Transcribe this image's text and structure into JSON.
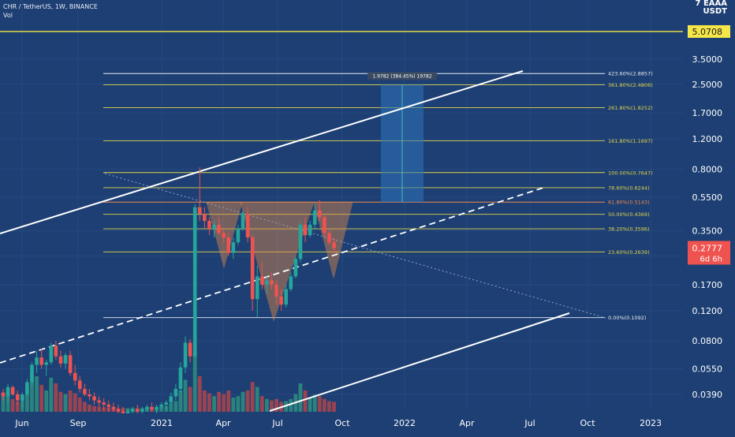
{
  "header": {
    "symbol": "CHR / TetherUS, 1W, BINANCE",
    "volume_label": "Vol",
    "quote_line1": "7 EAAA",
    "quote_line2": "USDT"
  },
  "colors": {
    "background": "#1d3f73",
    "candle_up": "#26a69a",
    "candle_down": "#ef5350",
    "volume_up": "#2e8b7f",
    "volume_down": "#a8454f",
    "fib_line": "#e3d54a",
    "fib_61": "#f08a4b",
    "channel": "#ffffff",
    "resistance": "#f5e64a",
    "pattern_fill": "#e0894a",
    "target_box": "#2b74b8"
  },
  "chart_data": {
    "type": "candlestick",
    "scale": "log",
    "x_ticks": [
      "Jun",
      "Sep",
      "2021",
      "Apr",
      "Jul",
      "Oct",
      "2022",
      "Apr",
      "Jul",
      "Oct",
      "2023"
    ],
    "y_ticks": [
      "3.5000",
      "2.5000",
      "1.7000",
      "1.2000",
      "0.8000",
      "0.5500",
      "0.3500",
      "0.2500",
      "0.1700",
      "0.1200",
      "0.0800",
      "0.0550",
      "0.0390"
    ],
    "y_tick_values": [
      3.5,
      2.5,
      1.7,
      1.2,
      0.8,
      0.55,
      0.35,
      0.25,
      0.17,
      0.12,
      0.08,
      0.055,
      0.039
    ],
    "resistance_label": "5.0708",
    "resistance_value": 5.0708,
    "last_price_label": "0.2777",
    "last_price_value": 0.2777,
    "countdown_label": "6d 6h",
    "fib_levels": [
      {
        "label": "423.60%(2.8857)",
        "value": 2.8857
      },
      {
        "label": "361.80%(2.4806)",
        "value": 2.4806
      },
      {
        "label": "261.80%(1.8252)",
        "value": 1.8252
      },
      {
        "label": "161.80%(1.1697)",
        "value": 1.1697
      },
      {
        "label": "100.00%(0.7647)",
        "value": 0.7647
      },
      {
        "label": "78.60%(0.6244)",
        "value": 0.6244
      },
      {
        "label": "61.80%(0.5143)",
        "value": 0.5143
      },
      {
        "label": "50.00%(0.4369)",
        "value": 0.4369
      },
      {
        "label": "38.20%(0.3596)",
        "value": 0.3596
      },
      {
        "label": "23.60%(0.2639)",
        "value": 0.2639
      },
      {
        "label": "0.00%(0.1092)",
        "value": 0.1092
      }
    ],
    "measure_label": "1.9782 (384.45%) 19782",
    "target_box": {
      "low": 0.5143,
      "high": 2.4806
    },
    "candles": [
      [
        0.04,
        0.042,
        0.036,
        0.038
      ],
      [
        0.038,
        0.045,
        0.035,
        0.043
      ],
      [
        0.043,
        0.044,
        0.038,
        0.039
      ],
      [
        0.039,
        0.041,
        0.034,
        0.036
      ],
      [
        0.036,
        0.04,
        0.033,
        0.039
      ],
      [
        0.039,
        0.048,
        0.038,
        0.046
      ],
      [
        0.046,
        0.06,
        0.044,
        0.058
      ],
      [
        0.058,
        0.07,
        0.052,
        0.064
      ],
      [
        0.064,
        0.072,
        0.055,
        0.058
      ],
      [
        0.058,
        0.062,
        0.05,
        0.06
      ],
      [
        0.06,
        0.078,
        0.058,
        0.075
      ],
      [
        0.075,
        0.08,
        0.062,
        0.065
      ],
      [
        0.065,
        0.07,
        0.056,
        0.059
      ],
      [
        0.059,
        0.068,
        0.055,
        0.066
      ],
      [
        0.066,
        0.07,
        0.05,
        0.052
      ],
      [
        0.052,
        0.058,
        0.044,
        0.047
      ],
      [
        0.047,
        0.05,
        0.04,
        0.042
      ],
      [
        0.042,
        0.045,
        0.038,
        0.039
      ],
      [
        0.039,
        0.042,
        0.036,
        0.038
      ],
      [
        0.038,
        0.04,
        0.034,
        0.036
      ],
      [
        0.036,
        0.038,
        0.033,
        0.035
      ],
      [
        0.035,
        0.037,
        0.032,
        0.034
      ],
      [
        0.034,
        0.036,
        0.031,
        0.033
      ],
      [
        0.033,
        0.035,
        0.031,
        0.032
      ],
      [
        0.032,
        0.034,
        0.03,
        0.031
      ],
      [
        0.031,
        0.033,
        0.029,
        0.03
      ],
      [
        0.03,
        0.032,
        0.029,
        0.031
      ],
      [
        0.031,
        0.033,
        0.03,
        0.032
      ],
      [
        0.032,
        0.034,
        0.03,
        0.031
      ],
      [
        0.031,
        0.033,
        0.03,
        0.032
      ],
      [
        0.032,
        0.034,
        0.031,
        0.033
      ],
      [
        0.033,
        0.035,
        0.031,
        0.032
      ],
      [
        0.032,
        0.034,
        0.03,
        0.033
      ],
      [
        0.033,
        0.035,
        0.032,
        0.034
      ],
      [
        0.034,
        0.036,
        0.032,
        0.035
      ],
      [
        0.035,
        0.04,
        0.034,
        0.038
      ],
      [
        0.038,
        0.045,
        0.036,
        0.042
      ],
      [
        0.042,
        0.06,
        0.04,
        0.056
      ],
      [
        0.056,
        0.085,
        0.052,
        0.078
      ],
      [
        0.078,
        0.082,
        0.06,
        0.065
      ],
      [
        0.065,
        0.5,
        0.064,
        0.48
      ],
      [
        0.48,
        0.82,
        0.4,
        0.44
      ],
      [
        0.44,
        0.48,
        0.36,
        0.4
      ],
      [
        0.4,
        0.42,
        0.33,
        0.36
      ],
      [
        0.36,
        0.4,
        0.32,
        0.38
      ],
      [
        0.38,
        0.42,
        0.33,
        0.34
      ],
      [
        0.34,
        0.36,
        0.3,
        0.32
      ],
      [
        0.32,
        0.34,
        0.25,
        0.26
      ],
      [
        0.26,
        0.32,
        0.24,
        0.3
      ],
      [
        0.3,
        0.38,
        0.29,
        0.36
      ],
      [
        0.36,
        0.46,
        0.35,
        0.44
      ],
      [
        0.44,
        0.48,
        0.3,
        0.32
      ],
      [
        0.32,
        0.33,
        0.12,
        0.14
      ],
      [
        0.14,
        0.22,
        0.11,
        0.19
      ],
      [
        0.19,
        0.23,
        0.16,
        0.17
      ],
      [
        0.17,
        0.19,
        0.15,
        0.18
      ],
      [
        0.18,
        0.2,
        0.16,
        0.17
      ],
      [
        0.17,
        0.18,
        0.13,
        0.145
      ],
      [
        0.145,
        0.16,
        0.12,
        0.13
      ],
      [
        0.13,
        0.17,
        0.125,
        0.16
      ],
      [
        0.16,
        0.2,
        0.155,
        0.19
      ],
      [
        0.19,
        0.25,
        0.185,
        0.24
      ],
      [
        0.24,
        0.4,
        0.23,
        0.38
      ],
      [
        0.38,
        0.42,
        0.3,
        0.33
      ],
      [
        0.33,
        0.4,
        0.32,
        0.38
      ],
      [
        0.38,
        0.5,
        0.36,
        0.46
      ],
      [
        0.46,
        0.53,
        0.4,
        0.42
      ],
      [
        0.42,
        0.43,
        0.32,
        0.34
      ],
      [
        0.34,
        0.35,
        0.29,
        0.3
      ],
      [
        0.3,
        0.32,
        0.26,
        0.277
      ]
    ],
    "volumes": [
      [
        0.22,
        1
      ],
      [
        0.3,
        1
      ],
      [
        0.18,
        0
      ],
      [
        0.14,
        0
      ],
      [
        0.2,
        1
      ],
      [
        0.35,
        1
      ],
      [
        0.55,
        1
      ],
      [
        0.5,
        1
      ],
      [
        0.38,
        0
      ],
      [
        0.3,
        1
      ],
      [
        0.48,
        1
      ],
      [
        0.4,
        0
      ],
      [
        0.28,
        0
      ],
      [
        0.25,
        1
      ],
      [
        0.3,
        0
      ],
      [
        0.26,
        0
      ],
      [
        0.2,
        0
      ],
      [
        0.14,
        0
      ],
      [
        0.1,
        0
      ],
      [
        0.08,
        0
      ],
      [
        0.07,
        0
      ],
      [
        0.06,
        0
      ],
      [
        0.06,
        0
      ],
      [
        0.05,
        0
      ],
      [
        0.05,
        0
      ],
      [
        0.05,
        0
      ],
      [
        0.05,
        1
      ],
      [
        0.05,
        1
      ],
      [
        0.05,
        0
      ],
      [
        0.05,
        1
      ],
      [
        0.06,
        1
      ],
      [
        0.05,
        0
      ],
      [
        0.06,
        1
      ],
      [
        0.07,
        1
      ],
      [
        0.08,
        1
      ],
      [
        0.12,
        1
      ],
      [
        0.15,
        1
      ],
      [
        0.3,
        1
      ],
      [
        0.45,
        1
      ],
      [
        0.35,
        0
      ],
      [
        0.85,
        1
      ],
      [
        0.5,
        0
      ],
      [
        0.3,
        0
      ],
      [
        0.26,
        0
      ],
      [
        0.22,
        1
      ],
      [
        0.28,
        0
      ],
      [
        0.25,
        0
      ],
      [
        0.3,
        0
      ],
      [
        0.2,
        1
      ],
      [
        0.22,
        1
      ],
      [
        0.28,
        1
      ],
      [
        0.3,
        0
      ],
      [
        0.42,
        0
      ],
      [
        0.35,
        1
      ],
      [
        0.22,
        0
      ],
      [
        0.18,
        1
      ],
      [
        0.16,
        0
      ],
      [
        0.18,
        0
      ],
      [
        0.14,
        0
      ],
      [
        0.15,
        1
      ],
      [
        0.18,
        1
      ],
      [
        0.25,
        1
      ],
      [
        0.4,
        1
      ],
      [
        0.3,
        0
      ],
      [
        0.2,
        1
      ],
      [
        0.24,
        1
      ],
      [
        0.22,
        0
      ],
      [
        0.18,
        0
      ],
      [
        0.15,
        0
      ],
      [
        0.14,
        0
      ]
    ]
  }
}
